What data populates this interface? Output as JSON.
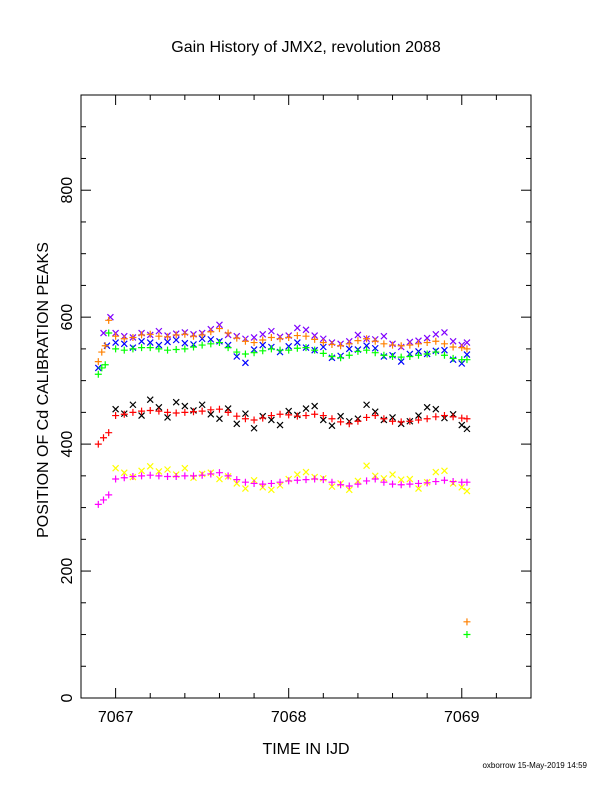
{
  "chart_data": {
    "type": "scatter",
    "title": "Gain History of JMX2, revolution 2088",
    "xlabel": "TIME IN IJD",
    "ylabel": "POSITION OF Cd CALIBRATION PEAKS",
    "xlim": [
      7066.8,
      7069.4
    ],
    "ylim": [
      0,
      950
    ],
    "x_ticks": [
      7067,
      7068,
      7069
    ],
    "x_tick_labels": [
      "7067",
      "7068",
      "7069"
    ],
    "y_ticks": [
      0,
      200,
      400,
      600,
      800
    ],
    "y_tick_labels": [
      "0",
      "200",
      "400",
      "600",
      "800"
    ],
    "grid": false,
    "legend": "none",
    "footer": "oxborrow 15-May-2019 14:59",
    "series": [
      {
        "color": "#7f00ff",
        "marker": "x",
        "x": [
          7066.93,
          7066.97,
          7067.0,
          7067.05,
          7067.1,
          7067.15,
          7067.2,
          7067.25,
          7067.3,
          7067.35,
          7067.4,
          7067.45,
          7067.5,
          7067.55,
          7067.6,
          7067.65,
          7067.7,
          7067.75,
          7067.8,
          7067.85,
          7067.9,
          7067.95,
          7068.0,
          7068.05,
          7068.1,
          7068.15,
          7068.2,
          7068.25,
          7068.3,
          7068.35,
          7068.4,
          7068.45,
          7068.5,
          7068.55,
          7068.6,
          7068.65,
          7068.7,
          7068.75,
          7068.8,
          7068.85,
          7068.9,
          7068.95,
          7069.0,
          7069.03
        ],
        "y": [
          575,
          600,
          575,
          570,
          568,
          575,
          572,
          578,
          571,
          574,
          576,
          573,
          575,
          581,
          588,
          572,
          570,
          566,
          568,
          573,
          578,
          569,
          571,
          583,
          580,
          571,
          566,
          560,
          558,
          562,
          572,
          566,
          565,
          570,
          558,
          553,
          561,
          563,
          567,
          573,
          576,
          562,
          556,
          560
        ]
      },
      {
        "color": "#0000ff",
        "marker": "x",
        "x": [
          7066.9,
          7066.95,
          7067.0,
          7067.05,
          7067.1,
          7067.15,
          7067.2,
          7067.25,
          7067.3,
          7067.35,
          7067.4,
          7067.45,
          7067.5,
          7067.55,
          7067.6,
          7067.65,
          7067.7,
          7067.75,
          7067.8,
          7067.85,
          7067.9,
          7067.95,
          7068.0,
          7068.05,
          7068.1,
          7068.15,
          7068.2,
          7068.25,
          7068.3,
          7068.35,
          7068.4,
          7068.45,
          7068.5,
          7068.55,
          7068.6,
          7068.65,
          7068.7,
          7068.75,
          7068.8,
          7068.85,
          7068.9,
          7068.95,
          7069.0,
          7069.03
        ],
        "y": [
          520,
          555,
          560,
          558,
          552,
          562,
          560,
          556,
          561,
          564,
          559,
          557,
          566,
          565,
          562,
          556,
          538,
          528,
          549,
          556,
          553,
          545,
          554,
          560,
          552,
          548,
          553,
          536,
          539,
          550,
          549,
          555,
          551,
          538,
          540,
          530,
          542,
          546,
          542,
          547,
          548,
          533,
          527,
          541
        ]
      },
      {
        "color": "#ff8000",
        "marker": "+",
        "x": [
          7066.9,
          7066.92,
          7066.94,
          7066.96,
          7067.0,
          7067.05,
          7067.1,
          7067.15,
          7067.2,
          7067.25,
          7067.3,
          7067.35,
          7067.4,
          7067.45,
          7067.5,
          7067.55,
          7067.6,
          7067.65,
          7067.7,
          7067.75,
          7067.8,
          7067.85,
          7067.9,
          7067.95,
          7068.0,
          7068.05,
          7068.1,
          7068.15,
          7068.2,
          7068.25,
          7068.3,
          7068.35,
          7068.4,
          7068.45,
          7068.5,
          7068.55,
          7068.6,
          7068.65,
          7068.7,
          7068.75,
          7068.8,
          7068.85,
          7068.9,
          7068.95,
          7069.0,
          7069.03,
          7069.03
        ],
        "y": [
          530,
          545,
          555,
          595,
          570,
          566,
          568,
          572,
          573,
          570,
          569,
          572,
          573,
          570,
          572,
          577,
          582,
          575,
          567,
          562,
          560,
          564,
          568,
          566,
          568,
          571,
          570,
          565,
          560,
          557,
          555,
          558,
          563,
          566,
          562,
          558,
          556,
          555,
          556,
          558,
          560,
          562,
          558,
          553,
          552,
          550,
          120
        ]
      },
      {
        "color": "#00ff00",
        "marker": "+",
        "x": [
          7066.9,
          7066.92,
          7066.94,
          7066.96,
          7067.0,
          7067.05,
          7067.1,
          7067.15,
          7067.2,
          7067.25,
          7067.3,
          7067.35,
          7067.4,
          7067.45,
          7067.5,
          7067.55,
          7067.6,
          7067.65,
          7067.7,
          7067.75,
          7067.8,
          7067.85,
          7067.9,
          7067.95,
          7068.0,
          7068.05,
          7068.1,
          7068.15,
          7068.2,
          7068.25,
          7068.3,
          7068.35,
          7068.4,
          7068.45,
          7068.5,
          7068.55,
          7068.6,
          7068.65,
          7068.7,
          7068.75,
          7068.8,
          7068.85,
          7068.9,
          7068.95,
          7069.0,
          7069.03,
          7069.03
        ],
        "y": [
          510,
          520,
          525,
          575,
          550,
          548,
          550,
          552,
          552,
          550,
          548,
          549,
          550,
          553,
          556,
          558,
          560,
          552,
          545,
          542,
          544,
          547,
          550,
          548,
          548,
          551,
          552,
          548,
          543,
          538,
          536,
          540,
          546,
          548,
          544,
          540,
          538,
          537,
          538,
          540,
          542,
          545,
          540,
          535,
          533,
          533,
          100
        ]
      },
      {
        "color": "#000000",
        "marker": "x",
        "x": [
          7067.0,
          7067.05,
          7067.1,
          7067.15,
          7067.2,
          7067.25,
          7067.3,
          7067.35,
          7067.4,
          7067.45,
          7067.5,
          7067.55,
          7067.6,
          7067.65,
          7067.7,
          7067.75,
          7067.8,
          7067.85,
          7067.9,
          7067.95,
          7068.0,
          7068.05,
          7068.1,
          7068.15,
          7068.2,
          7068.25,
          7068.3,
          7068.35,
          7068.4,
          7068.45,
          7068.5,
          7068.55,
          7068.6,
          7068.65,
          7068.7,
          7068.75,
          7068.8,
          7068.85,
          7068.9,
          7068.95,
          7069.0,
          7069.03
        ],
        "y": [
          455,
          448,
          462,
          445,
          470,
          458,
          442,
          466,
          460,
          453,
          462,
          447,
          440,
          456,
          432,
          448,
          425,
          444,
          438,
          430,
          452,
          446,
          456,
          460,
          438,
          429,
          444,
          436,
          440,
          462,
          451,
          438,
          442,
          432,
          436,
          445,
          458,
          455,
          441,
          447,
          430,
          424
        ]
      },
      {
        "color": "#ff0000",
        "marker": "+",
        "x": [
          7066.9,
          7066.93,
          7066.96,
          7067.0,
          7067.05,
          7067.1,
          7067.15,
          7067.2,
          7067.25,
          7067.3,
          7067.35,
          7067.4,
          7067.45,
          7067.5,
          7067.55,
          7067.6,
          7067.65,
          7067.7,
          7067.75,
          7067.8,
          7067.85,
          7067.9,
          7067.95,
          7068.0,
          7068.05,
          7068.1,
          7068.15,
          7068.2,
          7068.25,
          7068.3,
          7068.35,
          7068.4,
          7068.45,
          7068.5,
          7068.55,
          7068.6,
          7068.65,
          7068.7,
          7068.75,
          7068.8,
          7068.85,
          7068.9,
          7068.95,
          7069.0,
          7069.03
        ],
        "y": [
          400,
          410,
          418,
          445,
          447,
          450,
          452,
          453,
          452,
          450,
          449,
          450,
          451,
          452,
          454,
          455,
          450,
          444,
          440,
          438,
          441,
          445,
          447,
          446,
          444,
          445,
          447,
          445,
          440,
          435,
          432,
          436,
          442,
          445,
          440,
          436,
          435,
          436,
          438,
          440,
          443,
          445,
          443,
          441,
          440
        ]
      },
      {
        "color": "#ffff00",
        "marker": "x",
        "x": [
          7067.0,
          7067.05,
          7067.1,
          7067.15,
          7067.2,
          7067.25,
          7067.3,
          7067.35,
          7067.4,
          7067.45,
          7067.5,
          7067.55,
          7067.6,
          7067.65,
          7067.7,
          7067.75,
          7067.8,
          7067.85,
          7067.9,
          7067.95,
          7068.0,
          7068.05,
          7068.1,
          7068.15,
          7068.2,
          7068.25,
          7068.3,
          7068.35,
          7068.4,
          7068.45,
          7068.5,
          7068.55,
          7068.6,
          7068.65,
          7068.7,
          7068.75,
          7068.8,
          7068.85,
          7068.9,
          7068.95,
          7069.0,
          7069.03
        ],
        "y": [
          362,
          355,
          348,
          358,
          365,
          357,
          360,
          352,
          362,
          347,
          353,
          355,
          345,
          349,
          338,
          330,
          343,
          332,
          328,
          335,
          345,
          352,
          356,
          348,
          346,
          333,
          338,
          328,
          342,
          366,
          350,
          346,
          352,
          344,
          345,
          330,
          340,
          356,
          358,
          338,
          332,
          326
        ]
      },
      {
        "color": "#ff00ff",
        "marker": "+",
        "x": [
          7066.9,
          7066.93,
          7066.96,
          7067.0,
          7067.05,
          7067.1,
          7067.15,
          7067.2,
          7067.25,
          7067.3,
          7067.35,
          7067.4,
          7067.45,
          7067.5,
          7067.55,
          7067.6,
          7067.65,
          7067.7,
          7067.75,
          7067.8,
          7067.85,
          7067.9,
          7067.95,
          7068.0,
          7068.05,
          7068.1,
          7068.15,
          7068.2,
          7068.25,
          7068.3,
          7068.35,
          7068.4,
          7068.45,
          7068.5,
          7068.55,
          7068.6,
          7068.65,
          7068.7,
          7068.75,
          7068.8,
          7068.85,
          7068.9,
          7068.95,
          7069.0,
          7069.03
        ],
        "y": [
          305,
          312,
          320,
          345,
          347,
          349,
          350,
          351,
          350,
          349,
          349,
          350,
          350,
          351,
          353,
          355,
          350,
          344,
          340,
          338,
          337,
          338,
          340,
          342,
          343,
          344,
          345,
          344,
          340,
          336,
          334,
          337,
          342,
          345,
          340,
          337,
          336,
          337,
          338,
          339,
          341,
          343,
          341,
          340,
          340
        ]
      }
    ]
  }
}
